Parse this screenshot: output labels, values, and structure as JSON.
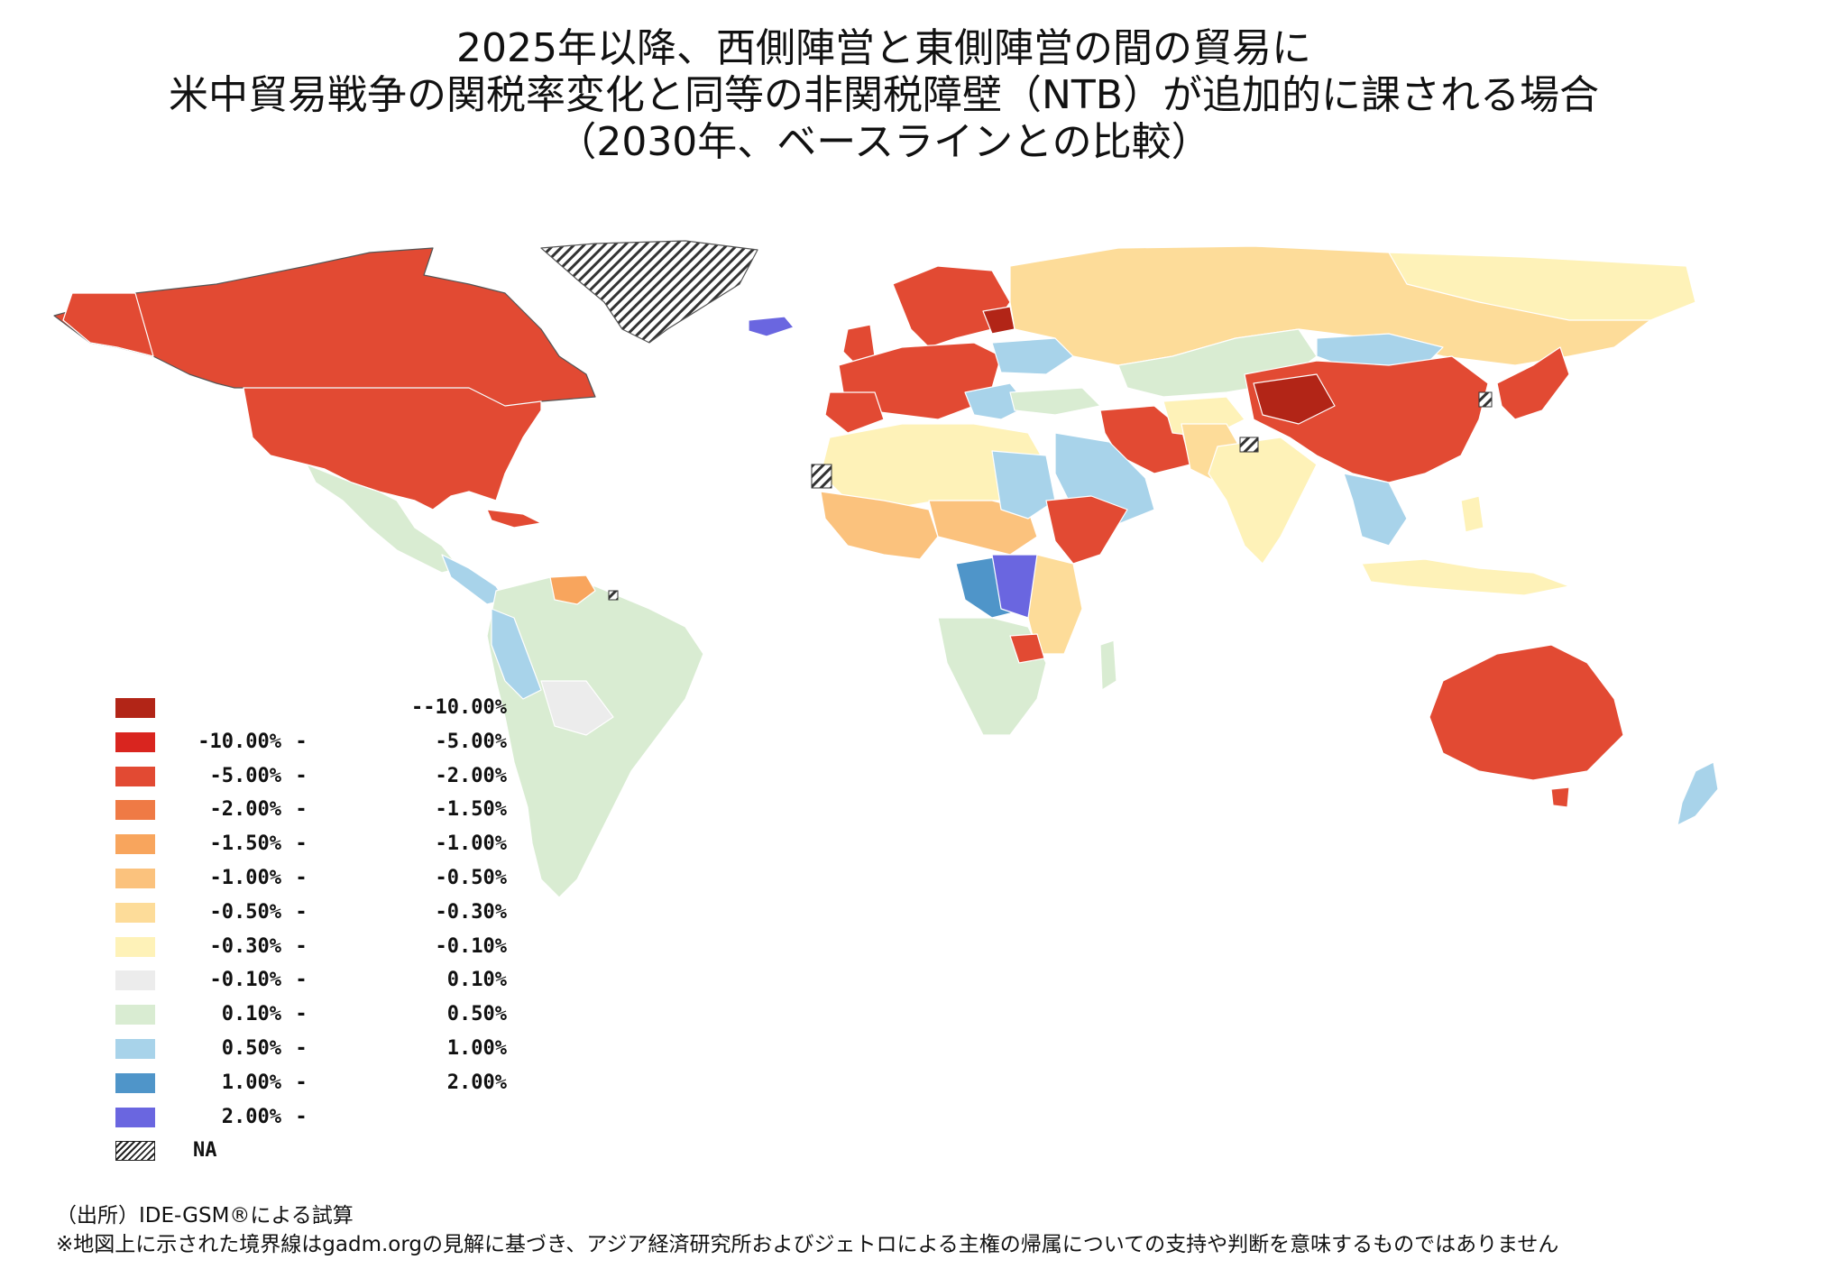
{
  "title": {
    "line1": "2025年以降、西側陣営と東側陣営の間の貿易に",
    "line2": "米中貿易戦争の関税率変化と同等の非関税障壁（NTB）が追加的に課される場合",
    "line3": "（2030年、ベースラインとの比較）"
  },
  "legend": [
    {
      "low": "",
      "high": "--10.00%",
      "color": "#b22517"
    },
    {
      "low": "-10.00%",
      "high": "-5.00%",
      "color": "#d9251f"
    },
    {
      "low": "-5.00%",
      "high": "-2.00%",
      "color": "#e24a33"
    },
    {
      "low": "-2.00%",
      "high": "-1.50%",
      "color": "#ef7a45"
    },
    {
      "low": "-1.50%",
      "high": "-1.00%",
      "color": "#f8a55d"
    },
    {
      "low": "-1.00%",
      "high": "-0.50%",
      "color": "#fbc27d"
    },
    {
      "low": "-0.50%",
      "high": "-0.30%",
      "color": "#fddc99"
    },
    {
      "low": "-0.30%",
      "high": "-0.10%",
      "color": "#fef2b8"
    },
    {
      "low": "-0.10%",
      "high": "0.10%",
      "color": "#ececec"
    },
    {
      "low": "0.10%",
      "high": "0.50%",
      "color": "#d9ecd2"
    },
    {
      "low": "0.50%",
      "high": "1.00%",
      "color": "#a8d3ea"
    },
    {
      "low": "1.00%",
      "high": "2.00%",
      "color": "#4f95c9"
    },
    {
      "low": "2.00%",
      "high": "",
      "color": "#6a66e0"
    }
  ],
  "legend_na": "NA",
  "footer": {
    "source": "（出所）IDE-GSM®による試算",
    "note": "※地図上に示された境界線はgadm.orgの見解に基づき、アジア経済研究所およびジェトロによる主権の帰属についての支持や判断を意味するものではありません"
  },
  "colors": {
    "land_border": "#ffffff",
    "coast": "#555555",
    "na_hatch": "#222222"
  }
}
